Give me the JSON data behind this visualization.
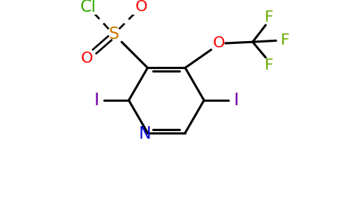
{
  "bg_color": "#ffffff",
  "atom_colors": {
    "N": "#0000cc",
    "O": "#ff0000",
    "S": "#cc7700",
    "Cl": "#33aa00",
    "F": "#66aa00",
    "I": "#7700aa",
    "C": "#000000"
  },
  "figsize": [
    4.84,
    3.0
  ],
  "dpi": 100
}
